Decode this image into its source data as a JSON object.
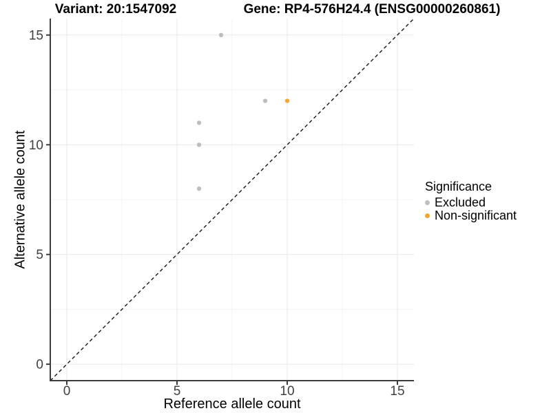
{
  "chart_data": {
    "type": "scatter",
    "titles": {
      "left": "Variant: 20:1547092",
      "right": "Gene: RP4-576H24.4 (ENSG00000260861)"
    },
    "xlabel": "Reference allele count",
    "ylabel": "Alternative allele count",
    "xlim": [
      -0.75,
      15.75
    ],
    "ylim": [
      -0.75,
      15.75
    ],
    "xticks": [
      0,
      5,
      10,
      15
    ],
    "yticks": [
      0,
      5,
      10,
      15
    ],
    "xticks_minor": [
      2.5,
      7.5,
      12.5
    ],
    "yticks_minor": [
      2.5,
      7.5,
      12.5
    ],
    "grid": true,
    "identity_line": {
      "slope": 1,
      "intercept": 0,
      "style": "dashed",
      "color": "#141414"
    },
    "legend": {
      "title": "Significance",
      "position": "right"
    },
    "series": [
      {
        "name": "Excluded",
        "color": "#BEBEBE",
        "points": [
          [
            6,
            8
          ],
          [
            6,
            10
          ],
          [
            6,
            11
          ],
          [
            7,
            15
          ],
          [
            9,
            12
          ]
        ]
      },
      {
        "name": "Non-significant",
        "color": "#F7A52F",
        "points": [
          [
            10,
            12
          ]
        ]
      }
    ]
  },
  "colors": {
    "grid_major": "#E7E7E7",
    "grid_minor": "#F3F3F3",
    "axis_line": "#3C3C3C",
    "tick_text": "#404040",
    "background": "#FFFFFF"
  }
}
